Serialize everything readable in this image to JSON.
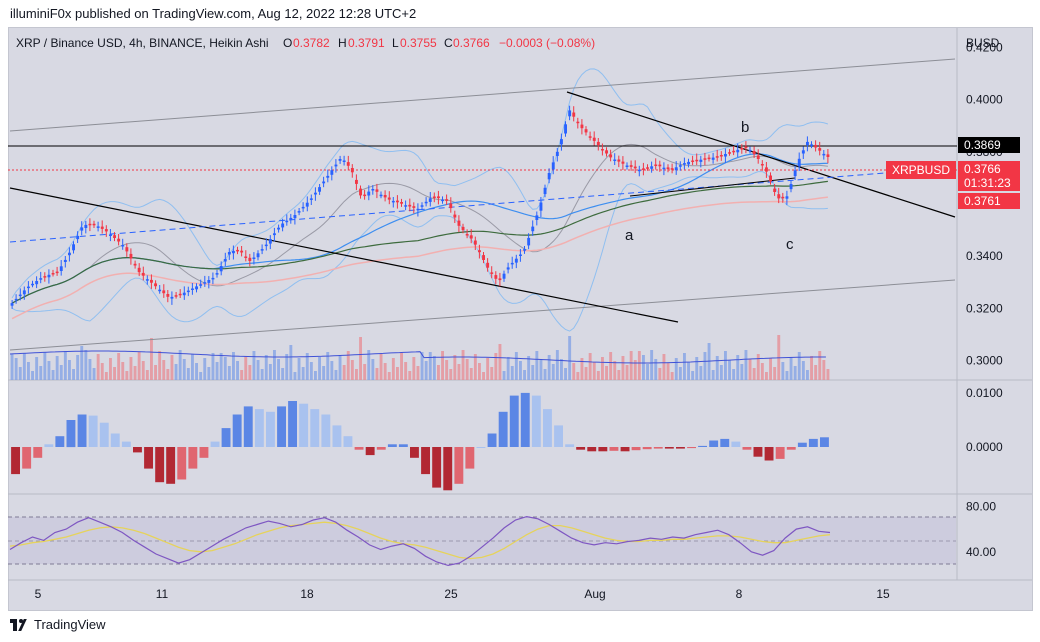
{
  "publisher_line": "illuminiF0x published on TradingView.com, Aug 12, 2022 12:28 UTC+2",
  "footer_brand": "TradingView",
  "symbol_title": "XRP / Binance USD, 4h, BINANCE, Heikin Ashi",
  "ohlc": {
    "o_label": "O",
    "o_value": "0.3782",
    "h_label": "H",
    "h_value": "0.3791",
    "l_label": "L",
    "l_value": "0.3755",
    "c_label": "C",
    "c_value": "0.3766",
    "change": "−0.0003 (−0.08%)"
  },
  "price_scale_title": "BUSD",
  "colors": {
    "up": "#2962ff",
    "down": "#f23645",
    "hist_up_strong": "#5b86e5",
    "hist_up_weak": "#a9c2ef",
    "hist_down_strong": "#b22833",
    "hist_down_weak": "#e06670",
    "rsi": "#7e57c2",
    "rsi_ma": "#e6d35b",
    "bb": "#90bff0",
    "ema_fast": "#3d8ef0",
    "ema_mid": "#3d6b3d",
    "ema_slow": "#f2b0b0"
  },
  "markers": {
    "level_value": "0.3869",
    "symbol_tag": "XRPBUSD",
    "last_price": "0.3766",
    "countdown": "01:31:23",
    "lower_price": "0.3761"
  },
  "wave_labels": [
    "a",
    "b",
    "c"
  ],
  "chart_data": [
    {
      "type": "candlestick",
      "title": "XRP / Binance USD, 4h, BINANCE, Heikin Ashi",
      "y_ticks": [
        "0.4200",
        "0.4000",
        "0.3800",
        "0.3600",
        "0.3400",
        "0.3200",
        "0.3000"
      ],
      "ylim": [
        0.2925,
        0.4275
      ],
      "x_ticks": [
        "5",
        "11",
        "18",
        "25",
        "Aug",
        "8",
        "15"
      ],
      "close_points": [
        [
          0,
          0.322
        ],
        [
          6,
          0.328
        ],
        [
          12,
          0.332
        ],
        [
          18,
          0.334
        ],
        [
          22,
          0.34
        ],
        [
          28,
          0.352
        ],
        [
          33,
          0.352
        ],
        [
          38,
          0.349
        ],
        [
          44,
          0.344
        ],
        [
          50,
          0.334
        ],
        [
          56,
          0.329
        ],
        [
          62,
          0.324
        ],
        [
          68,
          0.326
        ],
        [
          74,
          0.329
        ],
        [
          80,
          0.332
        ],
        [
          86,
          0.342
        ],
        [
          90,
          0.342
        ],
        [
          94,
          0.338
        ],
        [
          100,
          0.344
        ],
        [
          106,
          0.352
        ],
        [
          112,
          0.356
        ],
        [
          118,
          0.362
        ],
        [
          124,
          0.37
        ],
        [
          130,
          0.378
        ],
        [
          134,
          0.373
        ],
        [
          138,
          0.362
        ],
        [
          142,
          0.366
        ],
        [
          148,
          0.362
        ],
        [
          154,
          0.36
        ],
        [
          160,
          0.358
        ],
        [
          166,
          0.363
        ],
        [
          172,
          0.361
        ],
        [
          176,
          0.352
        ],
        [
          182,
          0.346
        ],
        [
          188,
          0.335
        ],
        [
          192,
          0.33
        ],
        [
          196,
          0.336
        ],
        [
          202,
          0.342
        ],
        [
          208,
          0.358
        ],
        [
          212,
          0.372
        ],
        [
          216,
          0.382
        ],
        [
          220,
          0.396
        ],
        [
          224,
          0.39
        ],
        [
          230,
          0.384
        ],
        [
          236,
          0.378
        ],
        [
          242,
          0.375
        ],
        [
          248,
          0.373
        ],
        [
          254,
          0.375
        ],
        [
          260,
          0.373
        ],
        [
          266,
          0.376
        ],
        [
          272,
          0.377
        ],
        [
          278,
          0.378
        ],
        [
          284,
          0.38
        ],
        [
          290,
          0.382
        ],
        [
          294,
          0.378
        ],
        [
          298,
          0.372
        ],
        [
          302,
          0.362
        ],
        [
          306,
          0.363
        ],
        [
          310,
          0.376
        ],
        [
          314,
          0.384
        ],
        [
          318,
          0.381
        ],
        [
          322,
          0.378
        ]
      ],
      "wave_labels": [
        "a",
        "b",
        "c"
      ]
    },
    {
      "type": "bar",
      "name": "momentum_histogram",
      "y_ticks": [
        "0.0100",
        "0.0000"
      ],
      "ylim": [
        -0.0085,
        0.0122
      ],
      "values": [
        -0.005,
        -0.004,
        -0.002,
        0.0005,
        0.002,
        0.005,
        0.006,
        0.0058,
        0.0045,
        0.0025,
        0.001,
        -0.001,
        -0.004,
        -0.0065,
        -0.0068,
        -0.006,
        -0.004,
        -0.002,
        0.001,
        0.0035,
        0.006,
        0.0075,
        0.007,
        0.0065,
        0.0075,
        0.0085,
        0.008,
        0.007,
        0.006,
        0.004,
        0.002,
        -0.0005,
        -0.0015,
        -0.0005,
        0.0005,
        0.0005,
        -0.002,
        -0.005,
        -0.0075,
        -0.008,
        -0.0068,
        -0.004,
        0.0,
        0.0025,
        0.0065,
        0.0095,
        0.01,
        0.0095,
        0.007,
        0.004,
        0.0005,
        -0.0005,
        -0.0008,
        -0.0008,
        -0.0007,
        -0.0008,
        -0.0006,
        -0.0004,
        -0.0003,
        -0.0003,
        -0.0003,
        -0.0002,
        0.0002,
        0.0012,
        0.0015,
        0.001,
        -0.0005,
        -0.0018,
        -0.0025,
        -0.0022,
        -0.0005,
        0.0008,
        0.0015,
        0.0018
      ]
    },
    {
      "type": "line",
      "name": "rsi",
      "y_ticks": [
        "80.00",
        "40.00"
      ],
      "ylim": [
        16,
        90
      ],
      "upper_band": 70,
      "middle": 50,
      "lower_band": 30,
      "rsi": [
        42,
        48,
        53,
        50,
        57,
        60,
        66,
        70,
        66,
        62,
        57,
        50,
        44,
        38,
        34,
        30,
        33,
        39,
        45,
        51,
        56,
        61,
        64,
        67,
        65,
        62,
        64,
        68,
        70,
        66,
        59,
        53,
        46,
        42,
        45,
        47,
        43,
        36,
        31,
        28,
        30,
        36,
        44,
        52,
        61,
        68,
        71,
        69,
        64,
        58,
        52,
        48,
        46,
        48,
        47,
        49,
        50,
        52,
        51,
        53,
        52,
        55,
        57,
        59,
        55,
        48,
        40,
        37,
        41,
        52,
        60,
        62,
        58,
        57
      ],
      "rsi_ma": [
        45,
        46,
        48,
        49,
        51,
        53,
        56,
        59,
        61,
        62,
        61,
        59,
        56,
        52,
        48,
        44,
        41,
        40,
        41,
        44,
        47,
        51,
        55,
        58,
        61,
        63,
        64,
        65,
        66,
        65,
        63,
        60,
        56,
        52,
        49,
        47,
        46,
        44,
        41,
        38,
        35,
        34,
        35,
        38,
        43,
        49,
        55,
        60,
        63,
        63,
        61,
        58,
        55,
        52,
        50,
        49,
        49,
        50,
        50,
        51,
        51,
        52,
        53,
        54,
        54,
        53,
        51,
        49,
        48,
        48,
        50,
        52,
        54,
        55
      ]
    }
  ]
}
